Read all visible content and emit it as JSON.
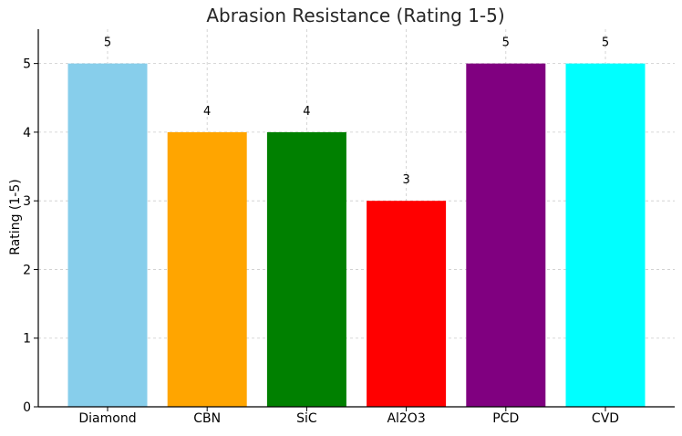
{
  "chart_data": {
    "type": "bar",
    "title": "Abrasion Resistance (Rating 1-5)",
    "xlabel": "",
    "ylabel": "Rating (1-5)",
    "categories": [
      "Diamond",
      "CBN",
      "SiC",
      "Al2O3",
      "PCD",
      "CVD"
    ],
    "values": [
      5,
      4,
      4,
      3,
      5,
      5
    ],
    "data_labels": [
      "5",
      "4",
      "4",
      "3",
      "5",
      "5"
    ],
    "colors": [
      "#87CEEB",
      "#FFA500",
      "#008000",
      "#FF0000",
      "#800080",
      "#00FFFF"
    ],
    "ylim": [
      0,
      5.5
    ],
    "yticks": [
      0,
      1,
      2,
      3,
      4,
      5
    ],
    "grid": true
  }
}
